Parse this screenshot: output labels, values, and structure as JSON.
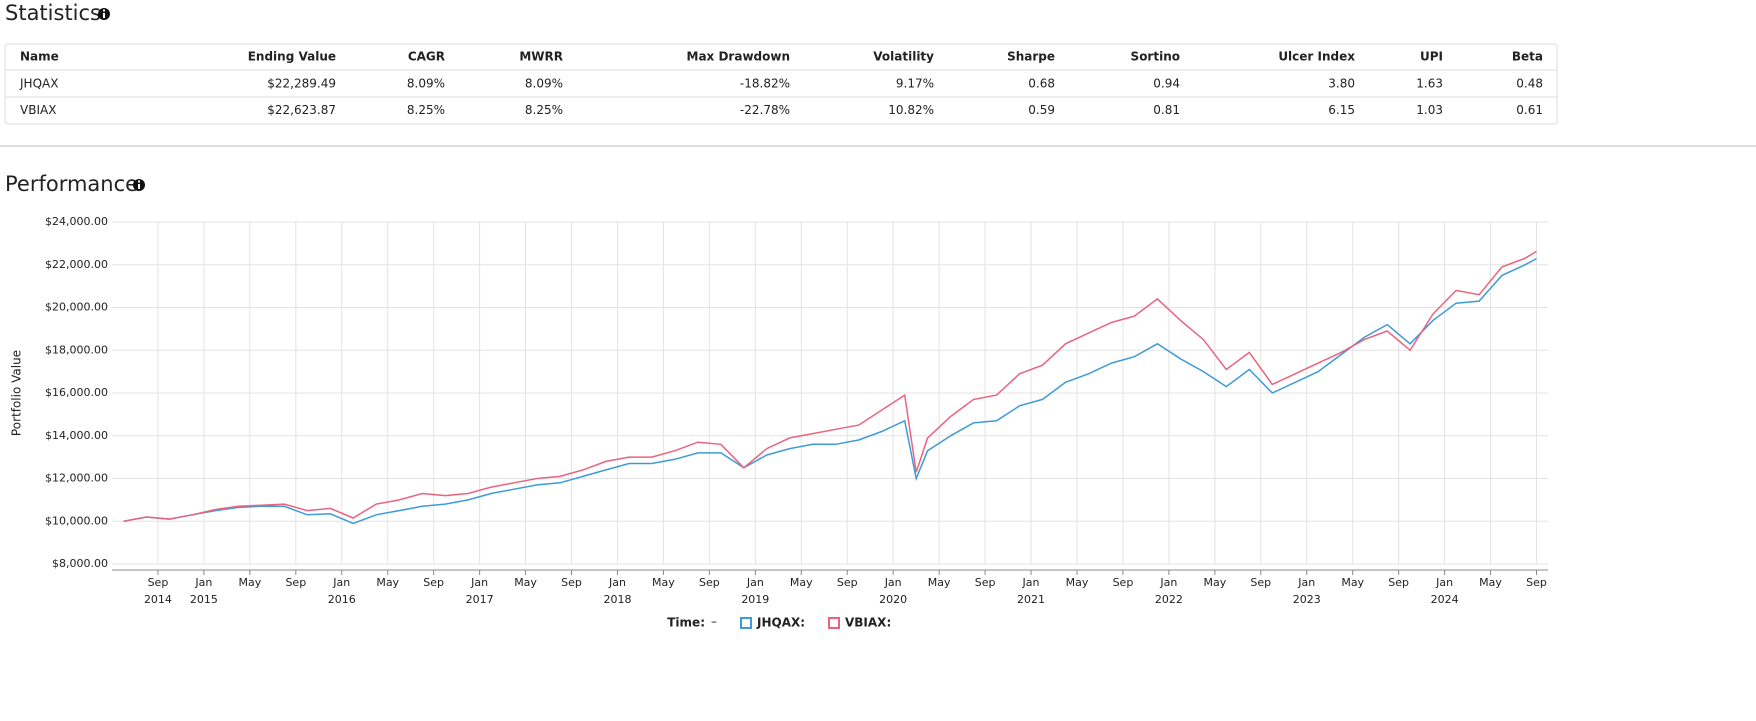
{
  "statistics": {
    "title": "Statistics",
    "table": {
      "header": [
        "Name",
        "Ending Value",
        "CAGR",
        "MWRR",
        "Max Drawdown",
        "Volatility",
        "Sharpe",
        "Sortino",
        "Ulcer Index",
        "UPI",
        "Beta"
      ],
      "rows": [
        [
          "JHQAX",
          "$22,289.49",
          "8.09%",
          "8.09%",
          "-18.82%",
          "9.17%",
          "0.68",
          "0.94",
          "3.80",
          "1.63",
          "0.48"
        ],
        [
          "VBIAX",
          "$22,623.87",
          "8.25%",
          "8.25%",
          "-22.78%",
          "10.82%",
          "0.59",
          "0.81",
          "6.15",
          "1.03",
          "0.61"
        ]
      ]
    }
  },
  "performance_title": "Performance",
  "chart_data": {
    "type": "line",
    "y_label": "Portfolio Value",
    "legend_title": "Time:",
    "legend_value": "–",
    "grid": true,
    "x": [
      "2014-06",
      "2014-08",
      "2014-10",
      "2014-12",
      "2015-02",
      "2015-04",
      "2015-06",
      "2015-08",
      "2015-10",
      "2015-12",
      "2016-02",
      "2016-04",
      "2016-06",
      "2016-08",
      "2016-10",
      "2016-12",
      "2017-02",
      "2017-04",
      "2017-06",
      "2017-08",
      "2017-10",
      "2017-12",
      "2018-02",
      "2018-04",
      "2018-06",
      "2018-08",
      "2018-10",
      "2018-12",
      "2019-02",
      "2019-04",
      "2019-06",
      "2019-08",
      "2019-10",
      "2019-12",
      "2020-02",
      "2020-03",
      "2020-04",
      "2020-06",
      "2020-08",
      "2020-10",
      "2020-12",
      "2021-02",
      "2021-04",
      "2021-06",
      "2021-08",
      "2021-10",
      "2021-12",
      "2022-02",
      "2022-04",
      "2022-06",
      "2022-08",
      "2022-10",
      "2022-12",
      "2023-02",
      "2023-04",
      "2023-06",
      "2023-08",
      "2023-10",
      "2023-12",
      "2024-02",
      "2024-04",
      "2024-06",
      "2024-08",
      "2024-09"
    ],
    "series": [
      {
        "name": "JHQAX:",
        "color": "#3d9bd8",
        "values": [
          10000,
          10200,
          10100,
          10300,
          10500,
          10650,
          10700,
          10700,
          10300,
          10350,
          9900,
          10300,
          10500,
          10700,
          10800,
          11000,
          11300,
          11500,
          11700,
          11800,
          12100,
          12400,
          12700,
          12700,
          12900,
          13200,
          13200,
          12500,
          13100,
          13400,
          13600,
          13600,
          13800,
          14200,
          14700,
          12000,
          13300,
          14000,
          14600,
          14700,
          15400,
          15700,
          16500,
          16900,
          17400,
          17700,
          18300,
          17600,
          17000,
          16300,
          17100,
          16000,
          16500,
          17000,
          17800,
          18600,
          19200,
          18300,
          19400,
          20200,
          20300,
          21500,
          22000,
          22289
        ]
      },
      {
        "name": "VBIAX:",
        "color": "#e9647e",
        "values": [
          10000,
          10200,
          10100,
          10300,
          10550,
          10700,
          10750,
          10800,
          10500,
          10600,
          10150,
          10800,
          11000,
          11300,
          11200,
          11300,
          11600,
          11800,
          12000,
          12100,
          12400,
          12800,
          13000,
          13000,
          13300,
          13700,
          13600,
          12500,
          13400,
          13900,
          14100,
          14300,
          14500,
          15200,
          15900,
          12300,
          13900,
          14900,
          15700,
          15900,
          16900,
          17300,
          18300,
          18800,
          19300,
          19600,
          20400,
          19400,
          18500,
          17100,
          17900,
          16400,
          16900,
          17400,
          17900,
          18500,
          18900,
          18000,
          19700,
          20800,
          20600,
          21900,
          22300,
          22624
        ]
      }
    ],
    "xlim": [
      "2014-05",
      "2024-10"
    ],
    "xticks": [
      {
        "value": "2014-09",
        "label": "Sep"
      },
      {
        "value": "2015-01",
        "label": "Jan"
      },
      {
        "value": "2015-05",
        "label": "May"
      },
      {
        "value": "2015-09",
        "label": "Sep"
      },
      {
        "value": "2016-01",
        "label": "Jan"
      },
      {
        "value": "2016-05",
        "label": "May"
      },
      {
        "value": "2016-09",
        "label": "Sep"
      },
      {
        "value": "2017-01",
        "label": "Jan"
      },
      {
        "value": "2017-05",
        "label": "May"
      },
      {
        "value": "2017-09",
        "label": "Sep"
      },
      {
        "value": "2018-01",
        "label": "Jan"
      },
      {
        "value": "2018-05",
        "label": "May"
      },
      {
        "value": "2018-09",
        "label": "Sep"
      },
      {
        "value": "2019-01",
        "label": "Jan"
      },
      {
        "value": "2019-05",
        "label": "May"
      },
      {
        "value": "2019-09",
        "label": "Sep"
      },
      {
        "value": "2020-01",
        "label": "Jan"
      },
      {
        "value": "2020-05",
        "label": "May"
      },
      {
        "value": "2020-09",
        "label": "Sep"
      },
      {
        "value": "2021-01",
        "label": "Jan"
      },
      {
        "value": "2021-05",
        "label": "May"
      },
      {
        "value": "2021-09",
        "label": "Sep"
      },
      {
        "value": "2022-01",
        "label": "Jan"
      },
      {
        "value": "2022-05",
        "label": "May"
      },
      {
        "value": "2022-09",
        "label": "Sep"
      },
      {
        "value": "2023-01",
        "label": "Jan"
      },
      {
        "value": "2023-05",
        "label": "May"
      },
      {
        "value": "2023-09",
        "label": "Sep"
      },
      {
        "value": "2024-01",
        "label": "Jan"
      },
      {
        "value": "2024-05",
        "label": "May"
      },
      {
        "value": "2024-09",
        "label": "Sep"
      }
    ],
    "xtick_years": [
      {
        "value": "2014-09",
        "label": "2014"
      },
      {
        "value": "2015-01",
        "label": "2015"
      },
      {
        "value": "2016-01",
        "label": "2016"
      },
      {
        "value": "2017-01",
        "label": "2017"
      },
      {
        "value": "2018-01",
        "label": "2018"
      },
      {
        "value": "2019-01",
        "label": "2019"
      },
      {
        "value": "2020-01",
        "label": "2020"
      },
      {
        "value": "2021-01",
        "label": "2021"
      },
      {
        "value": "2022-01",
        "label": "2022"
      },
      {
        "value": "2023-01",
        "label": "2023"
      },
      {
        "value": "2024-01",
        "label": "2024"
      }
    ],
    "ylim": [
      8000,
      24000
    ],
    "yticks": [
      {
        "value": 8000,
        "label": "$8,000.00"
      },
      {
        "value": 10000,
        "label": "$10,000.00"
      },
      {
        "value": 12000,
        "label": "$12,000.00"
      },
      {
        "value": 14000,
        "label": "$14,000.00"
      },
      {
        "value": 16000,
        "label": "$16,000.00"
      },
      {
        "value": 18000,
        "label": "$18,000.00"
      },
      {
        "value": 20000,
        "label": "$20,000.00"
      },
      {
        "value": 22000,
        "label": "$22,000.00"
      },
      {
        "value": 24000,
        "label": "$24,000.00"
      }
    ]
  }
}
